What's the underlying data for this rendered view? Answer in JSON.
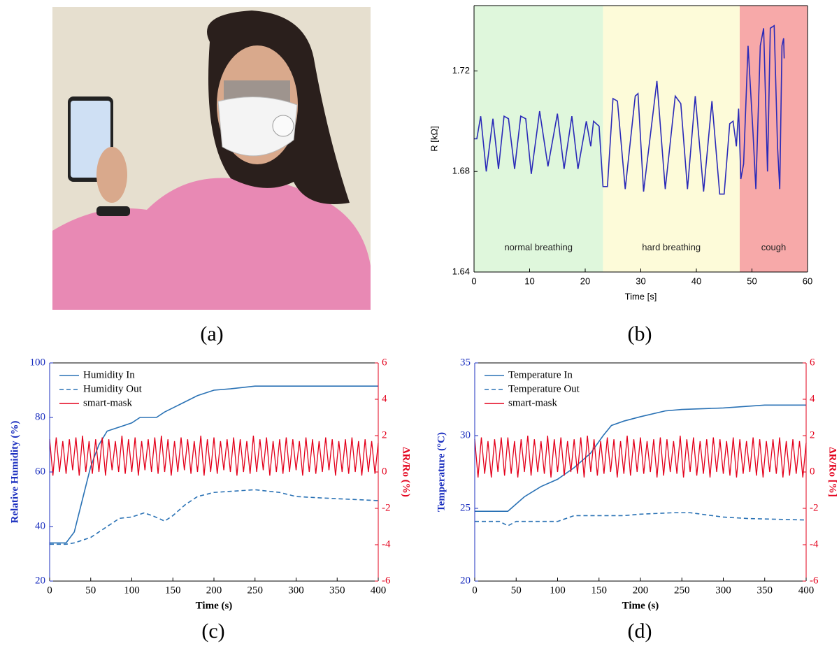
{
  "panel_labels": [
    "(a)",
    "(b)",
    "(c)",
    "(d)"
  ],
  "chart_data": [
    {
      "type": "line",
      "xlabel": "Time [s]",
      "ylabel": "R [kΩ]",
      "xlim": [
        0,
        60
      ],
      "ylim": [
        1.64,
        1.746
      ],
      "xticks": [
        0,
        10,
        20,
        30,
        40,
        50,
        60
      ],
      "yticks": [
        1.64,
        1.68,
        1.72
      ],
      "regions": [
        {
          "label": "normal breathing",
          "start": 0,
          "end": 23.2,
          "color": "#dff7dc"
        },
        {
          "label": "hard breathing",
          "start": 23.2,
          "end": 47.8,
          "color": "#fdfbd9"
        },
        {
          "label": "cough",
          "start": 47.8,
          "end": 60,
          "color": "#f7a9a9"
        }
      ],
      "series": [
        {
          "color": "#2a2ab8",
          "x": [
            0,
            0.5,
            1.2,
            2.2,
            3.4,
            4.4,
            5.4,
            6.2,
            7.3,
            8.4,
            9.3,
            10.3,
            11.8,
            13.3,
            15.0,
            16.2,
            17.6,
            18.7,
            20.2,
            21.0,
            21.5,
            22.5,
            23.2,
            24.0,
            25.0,
            25.8,
            27.2,
            29.0,
            29.5,
            30.5,
            32.9,
            34.4,
            36.2,
            37.2,
            38.4,
            39.8,
            41.3,
            42.8,
            44.2,
            45.0,
            46.0,
            46.6,
            47.2,
            47.6,
            48.0,
            48.5,
            49.3,
            50.2,
            50.7,
            51.5,
            52.1,
            52.8,
            53.3,
            54.0,
            54.6,
            55.0,
            55.4,
            55.7,
            55.8
          ],
          "values": [
            1.693,
            1.693,
            1.702,
            1.68,
            1.701,
            1.681,
            1.702,
            1.701,
            1.681,
            1.702,
            1.701,
            1.679,
            1.704,
            1.682,
            1.703,
            1.681,
            1.702,
            1.681,
            1.7,
            1.69,
            1.7,
            1.698,
            1.674,
            1.674,
            1.709,
            1.708,
            1.673,
            1.71,
            1.711,
            1.672,
            1.716,
            1.673,
            1.71,
            1.707,
            1.673,
            1.71,
            1.672,
            1.708,
            1.671,
            1.671,
            1.699,
            1.7,
            1.69,
            1.705,
            1.677,
            1.683,
            1.73,
            1.695,
            1.673,
            1.73,
            1.737,
            1.68,
            1.737,
            1.738,
            1.69,
            1.673,
            1.73,
            1.733,
            1.725
          ]
        }
      ]
    },
    {
      "type": "line",
      "xlabel": "Time (s)",
      "ylabel": "Relative Humidity (%)",
      "y2label": "ΔR/Ro (%)",
      "ycolor": "#1b2fbf",
      "y2color": "#e3001b",
      "legend": "upper left",
      "xlim": [
        0,
        400
      ],
      "ylim": [
        20,
        100
      ],
      "y2lim": [
        -6,
        6
      ],
      "xticks": [
        0,
        50,
        100,
        150,
        200,
        250,
        300,
        350,
        400
      ],
      "yticks": [
        20,
        40,
        60,
        80,
        100
      ],
      "y2ticks": [
        -6,
        -4,
        -2,
        0,
        2,
        4,
        6
      ],
      "series": [
        {
          "name": "Humidity In",
          "color": "#2a72b5",
          "dash": "solid",
          "x": [
            0,
            20,
            30,
            40,
            50,
            60,
            70,
            80,
            90,
            100,
            110,
            130,
            140,
            160,
            180,
            200,
            220,
            250,
            300,
            400
          ],
          "values": [
            34,
            34,
            38,
            50,
            62,
            70,
            75,
            76,
            77,
            78,
            80,
            80,
            82,
            85,
            88,
            90,
            90.5,
            91.5,
            91.5,
            91.5
          ]
        },
        {
          "name": "Humidity Out",
          "color": "#2a72b5",
          "dash": "dashed",
          "x": [
            0,
            20,
            30,
            50,
            70,
            85,
            100,
            115,
            125,
            140,
            150,
            165,
            180,
            200,
            250,
            280,
            300,
            330,
            400
          ],
          "values": [
            33.5,
            33.5,
            34,
            36,
            40,
            43,
            43.5,
            45,
            44,
            42,
            44,
            48,
            51,
            52.5,
            53.5,
            52.5,
            51,
            50.5,
            49.5
          ]
        },
        {
          "name": "smart-mask",
          "color": "#e3001b",
          "dash": "solid",
          "axis": "y2",
          "x": [
            0,
            4,
            8,
            12,
            16,
            20,
            24,
            28,
            32,
            36,
            40,
            44,
            48,
            52,
            56,
            60,
            64,
            68,
            72,
            76,
            80,
            84,
            88,
            92,
            96,
            100,
            104,
            108,
            112,
            116,
            120,
            124,
            128,
            132,
            136,
            140,
            144,
            148,
            152,
            156,
            160,
            164,
            168,
            172,
            176,
            180,
            184,
            188,
            192,
            196,
            200,
            204,
            208,
            212,
            216,
            220,
            224,
            228,
            232,
            236,
            240,
            244,
            248,
            252,
            256,
            260,
            264,
            268,
            272,
            276,
            280,
            284,
            288,
            292,
            296,
            300,
            304,
            308,
            312,
            316,
            320,
            324,
            328,
            332,
            336,
            340,
            344,
            348,
            352,
            356,
            360,
            364,
            368,
            372,
            376,
            380,
            384,
            388,
            392,
            396,
            400
          ],
          "values": [
            1.8,
            -0.2,
            1.9,
            0.0,
            1.7,
            -0.1,
            1.8,
            0.1,
            1.9,
            -0.2,
            2.0,
            0.0,
            1.7,
            -0.1,
            1.8,
            0.0,
            1.9,
            -0.2,
            1.8,
            0.1,
            1.7,
            0.0,
            2.0,
            -0.1,
            1.8,
            0.0,
            1.9,
            -0.2,
            1.7,
            0.1,
            1.8,
            0.0,
            1.9,
            -0.1,
            2.0,
            0.0,
            1.8,
            -0.2,
            1.7,
            0.0,
            1.9,
            0.1,
            1.8,
            -0.1,
            1.7,
            0.0,
            2.0,
            -0.2,
            1.8,
            0.0,
            1.9,
            -0.1,
            1.7,
            0.1,
            1.8,
            0.0,
            1.9,
            -0.2,
            1.8,
            0.0,
            1.7,
            -0.1,
            2.0,
            0.0,
            1.8,
            0.1,
            1.9,
            -0.2,
            1.7,
            0.0,
            1.8,
            -0.1,
            1.9,
            0.0,
            1.8,
            0.1,
            1.7,
            -0.2,
            1.9,
            0.0,
            1.8,
            -0.1,
            1.7,
            0.0,
            1.9,
            0.1,
            1.8,
            -0.2,
            1.7,
            0.0,
            1.8,
            -0.1,
            1.9,
            0.0,
            1.7,
            -0.2,
            1.8,
            0.0,
            1.7,
            -0.1,
            1.6
          ]
        }
      ]
    },
    {
      "type": "line",
      "xlabel": "Time (s)",
      "ylabel": "Temperature (°C)",
      "y2label": "ΔR/Ro [%]",
      "ycolor": "#1b2fbf",
      "y2color": "#e3001b",
      "legend": "upper left",
      "xlim": [
        0,
        400
      ],
      "ylim": [
        20,
        35
      ],
      "y2lim": [
        -6,
        6
      ],
      "xticks": [
        0,
        50,
        100,
        150,
        200,
        250,
        300,
        350,
        400
      ],
      "yticks": [
        20,
        25,
        30,
        35
      ],
      "y2ticks": [
        -6,
        -4,
        -2,
        0,
        2,
        4,
        6
      ],
      "series": [
        {
          "name": "Temperature In",
          "color": "#2a72b5",
          "dash": "solid",
          "x": [
            0,
            40,
            50,
            60,
            80,
            100,
            120,
            140,
            155,
            165,
            180,
            200,
            230,
            250,
            300,
            350,
            400
          ],
          "values": [
            24.8,
            24.8,
            25.3,
            25.8,
            26.5,
            27.0,
            27.8,
            28.8,
            30,
            30.7,
            31.0,
            31.3,
            31.7,
            31.8,
            31.9,
            32.1,
            32.1
          ]
        },
        {
          "name": "Temperature Out",
          "color": "#2a72b5",
          "dash": "dashed",
          "x": [
            0,
            30,
            40,
            50,
            100,
            120,
            180,
            200,
            240,
            260,
            300,
            330,
            400
          ],
          "values": [
            24.1,
            24.1,
            23.8,
            24.1,
            24.1,
            24.5,
            24.5,
            24.6,
            24.7,
            24.7,
            24.4,
            24.3,
            24.2
          ]
        },
        {
          "name": "smart-mask",
          "color": "#e3001b",
          "dash": "solid",
          "axis": "y2",
          "x": [
            0,
            4,
            8,
            12,
            16,
            20,
            24,
            28,
            32,
            36,
            40,
            44,
            48,
            52,
            56,
            60,
            64,
            68,
            72,
            76,
            80,
            84,
            88,
            92,
            96,
            100,
            104,
            108,
            112,
            116,
            120,
            124,
            128,
            132,
            136,
            140,
            144,
            148,
            152,
            156,
            160,
            164,
            168,
            172,
            176,
            180,
            184,
            188,
            192,
            196,
            200,
            204,
            208,
            212,
            216,
            220,
            224,
            228,
            232,
            236,
            240,
            244,
            248,
            252,
            256,
            260,
            264,
            268,
            272,
            276,
            280,
            284,
            288,
            292,
            296,
            300,
            304,
            308,
            312,
            316,
            320,
            324,
            328,
            332,
            336,
            340,
            344,
            348,
            352,
            356,
            360,
            364,
            368,
            372,
            376,
            380,
            384,
            388,
            392,
            396,
            400
          ],
          "values": [
            1.8,
            -0.3,
            1.9,
            -0.1,
            1.7,
            -0.3,
            1.8,
            0.0,
            1.9,
            -0.2,
            1.9,
            -0.1,
            1.7,
            -0.3,
            1.8,
            0.0,
            2.0,
            -0.2,
            1.8,
            0.0,
            1.7,
            -0.1,
            2.0,
            -0.3,
            1.8,
            0.0,
            1.9,
            -0.2,
            1.7,
            0.0,
            1.8,
            -0.1,
            1.9,
            -0.3,
            2.0,
            0.0,
            1.8,
            -0.2,
            1.7,
            -0.1,
            1.9,
            0.0,
            1.8,
            -0.3,
            1.7,
            -0.1,
            2.0,
            -0.2,
            1.8,
            0.0,
            1.9,
            -0.1,
            1.7,
            0.0,
            1.8,
            -0.3,
            1.9,
            -0.2,
            1.8,
            0.0,
            1.7,
            -0.1,
            2.0,
            -0.3,
            1.8,
            0.0,
            1.9,
            -0.2,
            1.7,
            -0.1,
            1.8,
            -0.3,
            1.9,
            0.0,
            1.8,
            -0.1,
            1.7,
            -0.2,
            1.9,
            -0.3,
            1.8,
            -0.1,
            1.7,
            0.0,
            1.9,
            -0.2,
            1.8,
            -0.3,
            1.7,
            0.0,
            1.8,
            -0.1,
            1.9,
            -0.3,
            1.7,
            -0.2,
            1.8,
            -0.1,
            1.7,
            -0.3,
            1.6
          ]
        }
      ]
    }
  ]
}
